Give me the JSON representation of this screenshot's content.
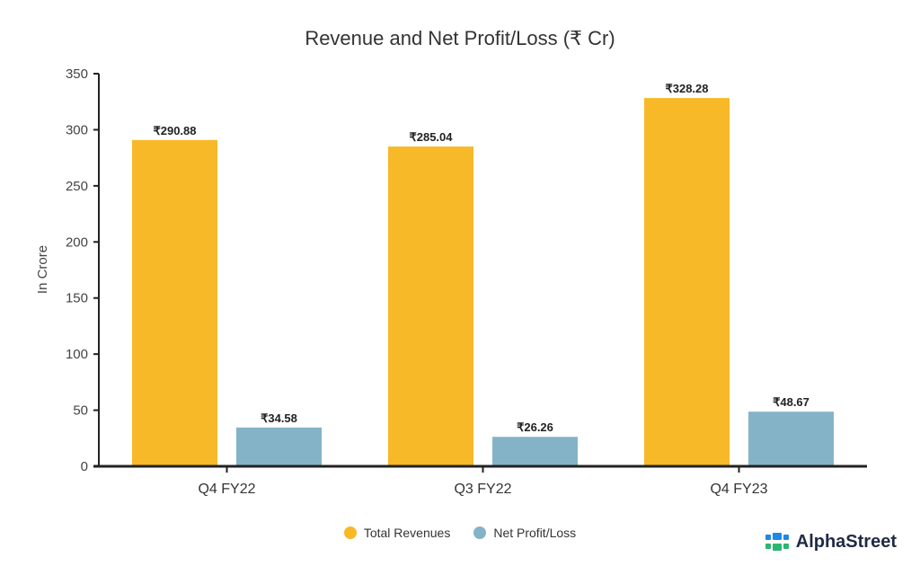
{
  "colors": {
    "revenue": "#f7b928",
    "profit": "#84b3c8",
    "axis": "#222222",
    "brand_blue": "#1e88e5",
    "brand_green": "#2bb673"
  },
  "brand": {
    "name": "AlphaStreet"
  },
  "chart_data": {
    "type": "bar",
    "title": "Revenue and Net Profit/Loss (₹ Cr)",
    "xlabel": "",
    "ylabel": "In Crore",
    "ylim": [
      0,
      350
    ],
    "yticks": [
      0,
      50,
      100,
      150,
      200,
      250,
      300,
      350
    ],
    "categories": [
      "Q4 FY22",
      "Q3 FY22",
      "Q4 FY23"
    ],
    "series": [
      {
        "name": "Total Revenues",
        "values": [
          290.88,
          285.04,
          328.28
        ],
        "labels": [
          "₹290.88",
          "₹285.04",
          "₹328.28"
        ]
      },
      {
        "name": "Net Profit/Loss",
        "values": [
          34.58,
          26.26,
          48.67
        ],
        "labels": [
          "₹34.58",
          "₹26.26",
          "₹48.67"
        ]
      }
    ],
    "legend_position": "bottom-center"
  }
}
